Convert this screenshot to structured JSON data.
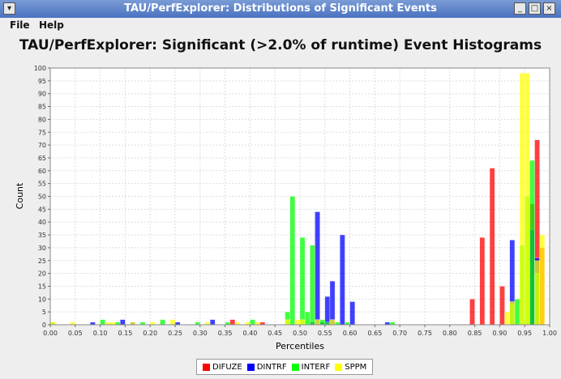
{
  "window": {
    "title": "TAU/PerfExplorer: Distributions of Significant Events"
  },
  "menu": {
    "file": "File",
    "help": "Help"
  },
  "chart_data": {
    "type": "bar",
    "title": "TAU/PerfExplorer: Significant (>2.0% of runtime) Event Histograms",
    "xlabel": "Percentiles",
    "ylabel": "Count",
    "xlim": [
      0,
      1
    ],
    "ylim": [
      0,
      100
    ],
    "bin_width": 0.01,
    "grid": true,
    "legend_position": "bottom",
    "x_ticks": [
      "0.00",
      "0.05",
      "0.10",
      "0.15",
      "0.20",
      "0.25",
      "0.30",
      "0.35",
      "0.40",
      "0.45",
      "0.50",
      "0.55",
      "0.60",
      "0.65",
      "0.70",
      "0.75",
      "0.80",
      "0.85",
      "0.90",
      "0.95",
      "1.00"
    ],
    "y_ticks": [
      "0",
      "5",
      "10",
      "15",
      "20",
      "25",
      "30",
      "35",
      "40",
      "45",
      "50",
      "55",
      "60",
      "65",
      "70",
      "75",
      "80",
      "85",
      "90",
      "95",
      "100"
    ],
    "series": [
      {
        "name": "DIFUZE",
        "color": "#ff0000",
        "points": [
          [
            0.36,
            2
          ],
          [
            0.42,
            1
          ],
          [
            0.84,
            10
          ],
          [
            0.86,
            34
          ],
          [
            0.88,
            61
          ],
          [
            0.9,
            15
          ],
          [
            0.96,
            47
          ],
          [
            0.97,
            72
          ],
          [
            0.98,
            30
          ]
        ]
      },
      {
        "name": "DINTRF",
        "color": "#0000ff",
        "points": [
          [
            0.08,
            1
          ],
          [
            0.14,
            2
          ],
          [
            0.16,
            1
          ],
          [
            0.25,
            1
          ],
          [
            0.32,
            2
          ],
          [
            0.52,
            1
          ],
          [
            0.53,
            44
          ],
          [
            0.54,
            1
          ],
          [
            0.55,
            11
          ],
          [
            0.56,
            17
          ],
          [
            0.58,
            35
          ],
          [
            0.6,
            9
          ],
          [
            0.67,
            1
          ],
          [
            0.92,
            33
          ],
          [
            0.96,
            37
          ],
          [
            0.97,
            26
          ]
        ]
      },
      {
        "name": "INTERF",
        "color": "#00ff00",
        "points": [
          [
            0.0,
            1
          ],
          [
            0.1,
            2
          ],
          [
            0.13,
            1
          ],
          [
            0.18,
            1
          ],
          [
            0.22,
            2
          ],
          [
            0.29,
            1
          ],
          [
            0.35,
            1
          ],
          [
            0.4,
            2
          ],
          [
            0.47,
            5
          ],
          [
            0.48,
            50
          ],
          [
            0.5,
            34
          ],
          [
            0.51,
            5
          ],
          [
            0.52,
            31
          ],
          [
            0.54,
            2
          ],
          [
            0.55,
            1
          ],
          [
            0.57,
            1
          ],
          [
            0.59,
            1
          ],
          [
            0.68,
            1
          ],
          [
            0.92,
            8
          ],
          [
            0.93,
            10
          ],
          [
            0.94,
            31
          ],
          [
            0.95,
            50
          ],
          [
            0.96,
            64
          ],
          [
            0.97,
            20
          ]
        ]
      },
      {
        "name": "SPPM",
        "color": "#ffff00",
        "points": [
          [
            0.0,
            1
          ],
          [
            0.04,
            1
          ],
          [
            0.11,
            1
          ],
          [
            0.12,
            1
          ],
          [
            0.16,
            1
          ],
          [
            0.2,
            1
          ],
          [
            0.24,
            2
          ],
          [
            0.31,
            1
          ],
          [
            0.37,
            1
          ],
          [
            0.39,
            1
          ],
          [
            0.41,
            1
          ],
          [
            0.47,
            2
          ],
          [
            0.49,
            2
          ],
          [
            0.5,
            2
          ],
          [
            0.53,
            2
          ],
          [
            0.56,
            2
          ],
          [
            0.91,
            5
          ],
          [
            0.92,
            9
          ],
          [
            0.94,
            98
          ],
          [
            0.95,
            98
          ],
          [
            0.97,
            25
          ],
          [
            0.98,
            35
          ]
        ]
      }
    ]
  }
}
